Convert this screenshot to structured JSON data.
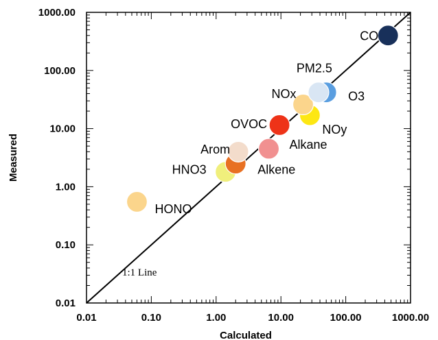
{
  "chart_data": {
    "type": "scatter",
    "title": "",
    "xlabel": "Calculated",
    "ylabel": "Measured",
    "xscale": "log",
    "yscale": "log",
    "xlim": [
      0.01,
      1000
    ],
    "ylim": [
      0.01,
      1000
    ],
    "x_ticks": [
      "0.01",
      "0.10",
      "1.00",
      "10.00",
      "100.00",
      "1000.00"
    ],
    "y_ticks": [
      "0.01",
      "0.10",
      "1.00",
      "10.00",
      "100.00",
      "1000.00"
    ],
    "grid": false,
    "reference_line": {
      "label": "1:1 Line",
      "slope": 1
    },
    "points": [
      {
        "label": "HONO",
        "x": 0.06,
        "y": 0.55,
        "color": "#fbd58c"
      },
      {
        "label": "HNO3",
        "x": 1.4,
        "y": 1.8,
        "color": "#f0ef7c"
      },
      {
        "label": "Alkene",
        "x": 2.0,
        "y": 2.5,
        "color": "#e87022"
      },
      {
        "label": "Arom",
        "x": 2.2,
        "y": 4.0,
        "color": "#f3dccb"
      },
      {
        "label": "Alkane",
        "x": 6.5,
        "y": 4.5,
        "color": "#f19090"
      },
      {
        "label": "OVOC",
        "x": 9.5,
        "y": 11.5,
        "color": "#ee3318"
      },
      {
        "label": "NOy",
        "x": 28,
        "y": 17,
        "color": "#fde713"
      },
      {
        "label": "NOx",
        "x": 22,
        "y": 26,
        "color": "#fbd58c"
      },
      {
        "label": "O3",
        "x": 50,
        "y": 42,
        "color": "#5a9ee0"
      },
      {
        "label": "PM2.5",
        "x": 38,
        "y": 42,
        "color": "#d9e6f4"
      },
      {
        "label": "CO",
        "x": 450,
        "y": 400,
        "color": "#18305a"
      }
    ]
  }
}
